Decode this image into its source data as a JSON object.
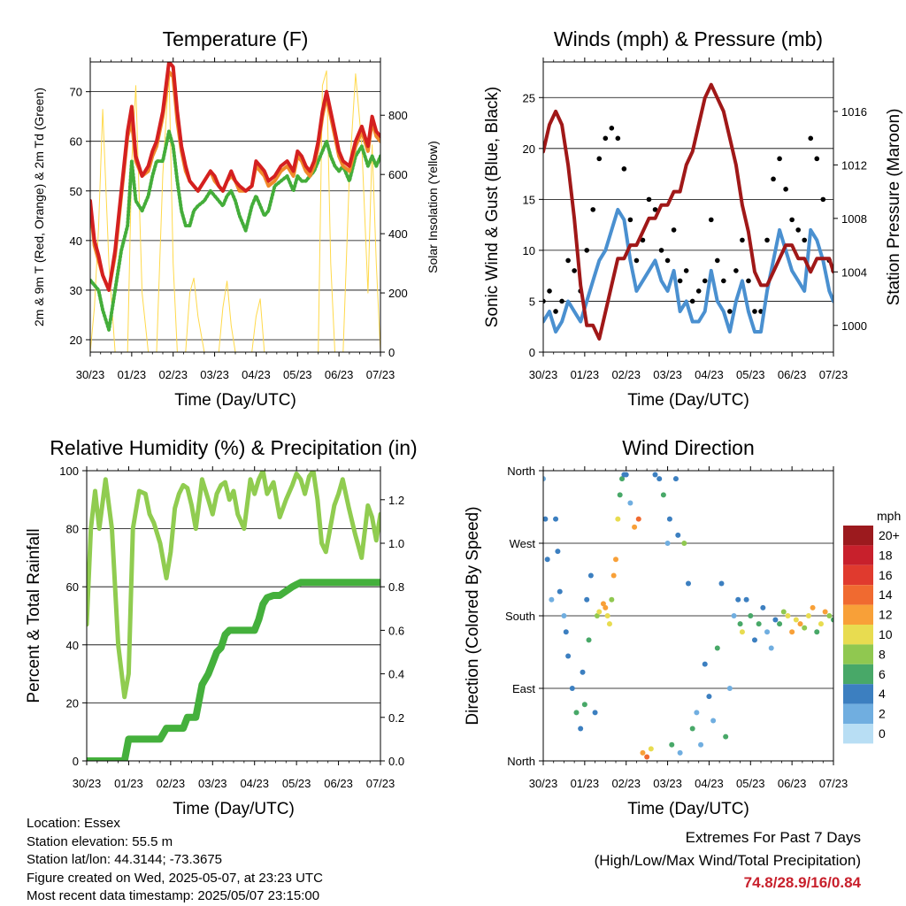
{
  "colors": {
    "temp2m": "#d42020",
    "temp9m": "#f08a2a",
    "dewpoint": "#44ad3a",
    "solar": "#ffd94a",
    "wind": "#4a90d0",
    "gust": "#000000",
    "pressure": "#a01818",
    "rh": "#90cc50",
    "rain": "#44b03c",
    "extreme_text": "#c8202c"
  },
  "x_tick_labels": [
    "30/23",
    "01/23",
    "02/23",
    "03/23",
    "04/23",
    "05/23",
    "06/23",
    "07/23"
  ],
  "x_axis_label": "Time (Day/UTC)",
  "chart_data": [
    {
      "type": "line",
      "title": "Temperature (F)",
      "xlabel": "Time (Day/UTC)",
      "ylabel": "2m & 9m T (Red, Orange) & 2m Td (Green)",
      "y2label": "Solar Insolation (Yellow)",
      "ylim": [
        17.5,
        76
      ],
      "yticks": [
        20,
        30,
        40,
        50,
        60,
        70
      ],
      "y2lim": [
        0,
        980
      ],
      "y2ticks": [
        0,
        200,
        400,
        600,
        800
      ],
      "x": [
        30.0,
        30.1,
        30.2,
        30.3,
        30.45,
        30.6,
        30.75,
        30.9,
        31.0,
        31.1,
        31.25,
        31.4,
        31.5,
        31.6,
        31.75,
        31.9,
        32.0,
        32.1,
        32.2,
        32.3,
        32.4,
        32.5,
        32.6,
        32.75,
        32.9,
        33.0,
        33.1,
        33.2,
        33.3,
        33.4,
        33.5,
        33.6,
        33.75,
        33.9,
        34.0,
        34.1,
        34.2,
        34.3,
        34.45,
        34.6,
        34.75,
        34.9,
        35.0,
        35.1,
        35.2,
        35.3,
        35.4,
        35.5,
        35.6,
        35.7,
        35.8,
        35.9,
        36.0,
        36.1,
        36.25,
        36.4,
        36.55,
        36.7,
        36.8,
        36.9,
        37.0
      ],
      "series": [
        {
          "name": "2m T",
          "values": [
            48,
            40,
            37,
            33,
            30,
            38,
            50,
            62,
            67,
            57,
            53,
            55,
            58,
            60,
            66,
            76,
            75,
            66,
            59,
            55,
            52,
            51,
            50,
            52,
            54,
            53,
            51,
            50,
            52,
            54,
            52,
            51,
            50,
            51,
            56,
            55,
            54,
            52,
            53,
            55,
            56,
            54,
            58,
            57,
            55,
            54,
            56,
            60,
            66,
            70,
            66,
            62,
            58,
            56,
            55,
            60,
            63,
            59,
            65,
            62,
            61
          ]
        },
        {
          "name": "9m T",
          "values": [
            47,
            39,
            36,
            33,
            30,
            37,
            49,
            61,
            64,
            56,
            53,
            54,
            57,
            59,
            65,
            74,
            73,
            64,
            58,
            54,
            52,
            51,
            50,
            52,
            54,
            52,
            51,
            50,
            52,
            53,
            52,
            50,
            50,
            51,
            55,
            54,
            53,
            51,
            52,
            54,
            55,
            53,
            57,
            56,
            54,
            53,
            55,
            59,
            65,
            69,
            65,
            61,
            57,
            55,
            54,
            59,
            62,
            58,
            64,
            61,
            60
          ]
        },
        {
          "name": "2m Td",
          "values": [
            32,
            31,
            30,
            26,
            22,
            30,
            38,
            43,
            56,
            48,
            46,
            49,
            53,
            56,
            56,
            62,
            59,
            52,
            46,
            43,
            43,
            46,
            47,
            48,
            50,
            49,
            48,
            47,
            49,
            50,
            48,
            45,
            42,
            47,
            49,
            47,
            45,
            46,
            51,
            52,
            53,
            50,
            53,
            52,
            52,
            53,
            54,
            56,
            58,
            60,
            57,
            55,
            54,
            55,
            52,
            57,
            59,
            55,
            57,
            55,
            57
          ]
        },
        {
          "name": "Solar",
          "values": [
            0,
            150,
            420,
            820,
            300,
            0,
            0,
            0,
            640,
            900,
            200,
            0,
            0,
            0,
            600,
            950,
            300,
            0,
            0,
            0,
            200,
            250,
            120,
            0,
            0,
            0,
            0,
            150,
            240,
            90,
            0,
            0,
            0,
            0,
            120,
            180,
            0,
            0,
            0,
            0,
            0,
            0,
            0,
            0,
            0,
            0,
            0,
            0,
            900,
            950,
            300,
            0,
            0,
            0,
            600,
            940,
            700,
            200,
            700,
            300,
            0
          ]
        }
      ]
    },
    {
      "type": "line",
      "title": "Winds (mph) & Pressure (mb)",
      "xlabel": "Time (Day/UTC)",
      "ylabel": "Sonic Wind & Gust (Blue, Black)",
      "y2label": "Station Pressure (Maroon)",
      "ylim": [
        0,
        28.5
      ],
      "yticks": [
        0,
        5,
        10,
        15,
        20,
        25
      ],
      "y2lim": [
        998.0,
        1019.7
      ],
      "y2ticks": [
        1000,
        1004,
        1008,
        1012,
        1016
      ],
      "x": [
        30.0,
        30.15,
        30.3,
        30.45,
        30.6,
        30.75,
        30.9,
        31.05,
        31.2,
        31.35,
        31.5,
        31.65,
        31.8,
        31.95,
        32.1,
        32.25,
        32.4,
        32.55,
        32.7,
        32.85,
        33.0,
        33.15,
        33.3,
        33.45,
        33.6,
        33.75,
        33.9,
        34.05,
        34.2,
        34.35,
        34.5,
        34.65,
        34.8,
        34.95,
        35.1,
        35.25,
        35.4,
        35.55,
        35.7,
        35.85,
        36.0,
        36.15,
        36.3,
        36.45,
        36.6,
        36.75,
        36.9,
        37.0
      ],
      "series": [
        {
          "name": "Sonic Wind",
          "values": [
            3,
            4,
            2,
            3,
            5,
            4,
            3,
            5,
            7,
            9,
            10,
            12,
            14,
            13,
            9,
            6,
            7,
            8,
            9,
            7,
            6,
            8,
            4,
            5,
            3,
            3,
            4,
            8,
            5,
            4,
            2,
            5,
            7,
            4,
            2,
            2,
            6,
            9,
            12,
            10,
            8,
            7,
            6,
            12,
            11,
            9,
            6,
            5
          ]
        },
        {
          "name": "Gust",
          "values": [
            5,
            6,
            4,
            5,
            9,
            8,
            6,
            10,
            14,
            19,
            21,
            22,
            21,
            18,
            13,
            9,
            11,
            15,
            14,
            10,
            9,
            12,
            7,
            8,
            5,
            6,
            7,
            13,
            9,
            7,
            4,
            8,
            11,
            7,
            4,
            4,
            11,
            17,
            19,
            16,
            13,
            12,
            11,
            21,
            19,
            15,
            9,
            8
          ]
        },
        {
          "name": "Station Pressure",
          "values": [
            1013,
            1015,
            1016,
            1015,
            1012,
            1008,
            1003,
            1000,
            1000,
            999,
            1001,
            1003,
            1005,
            1005,
            1006,
            1006,
            1007,
            1008,
            1008,
            1009,
            1009,
            1010,
            1010,
            1012,
            1013,
            1015,
            1017,
            1018,
            1017,
            1016,
            1014,
            1012,
            1009,
            1007,
            1004,
            1003,
            1003,
            1004,
            1005,
            1006,
            1006,
            1005,
            1005,
            1004,
            1005,
            1005,
            1005,
            1004
          ]
        }
      ]
    },
    {
      "type": "line",
      "title": "Relative Humidity (%) & Precipitation (in)",
      "xlabel": "Time (Day/UTC)",
      "ylabel": "Percent & Total Rainfall",
      "ylim": [
        0,
        100
      ],
      "yticks": [
        0,
        20,
        40,
        60,
        80,
        100
      ],
      "y2lim": [
        0,
        1.3333
      ],
      "y2ticks": [
        0.0,
        0.2,
        0.4,
        0.6,
        0.8,
        1.0,
        1.2
      ],
      "x": [
        30.0,
        30.1,
        30.2,
        30.3,
        30.45,
        30.6,
        30.75,
        30.9,
        31.0,
        31.1,
        31.25,
        31.4,
        31.5,
        31.6,
        31.75,
        31.9,
        32.0,
        32.1,
        32.2,
        32.3,
        32.4,
        32.5,
        32.6,
        32.75,
        32.9,
        33.0,
        33.1,
        33.2,
        33.3,
        33.4,
        33.5,
        33.6,
        33.75,
        33.9,
        34.0,
        34.1,
        34.2,
        34.3,
        34.45,
        34.6,
        34.75,
        34.9,
        35.0,
        35.1,
        35.2,
        35.3,
        35.4,
        35.5,
        35.6,
        35.7,
        35.8,
        35.9,
        36.0,
        36.1,
        36.25,
        36.4,
        36.55,
        36.7,
        36.8,
        36.9,
        37.0
      ],
      "series": [
        {
          "name": "Relative Humidity",
          "values": [
            47,
            80,
            93,
            80,
            97,
            80,
            40,
            22,
            30,
            80,
            93,
            92,
            85,
            82,
            75,
            63,
            72,
            87,
            92,
            95,
            94,
            88,
            80,
            97,
            90,
            85,
            92,
            95,
            96,
            90,
            93,
            85,
            80,
            97,
            92,
            97,
            100,
            92,
            96,
            84,
            90,
            95,
            99,
            97,
            92,
            98,
            100,
            90,
            75,
            72,
            80,
            88,
            92,
            97,
            87,
            78,
            70,
            88,
            84,
            76,
            85
          ]
        },
        {
          "name": "Total Rainfall",
          "values": [
            0,
            0,
            0,
            0,
            0,
            0,
            0,
            0,
            0.1,
            0.1,
            0.1,
            0.1,
            0.1,
            0.1,
            0.1,
            0.15,
            0.15,
            0.15,
            0.15,
            0.15,
            0.2,
            0.2,
            0.2,
            0.35,
            0.4,
            0.45,
            0.5,
            0.52,
            0.58,
            0.6,
            0.6,
            0.6,
            0.6,
            0.6,
            0.6,
            0.65,
            0.72,
            0.75,
            0.76,
            0.76,
            0.78,
            0.8,
            0.81,
            0.82,
            0.82,
            0.82,
            0.82,
            0.82,
            0.82,
            0.82,
            0.82,
            0.82,
            0.82,
            0.82,
            0.82,
            0.82,
            0.82,
            0.82,
            0.82,
            0.82,
            0.82
          ]
        }
      ]
    },
    {
      "type": "scatter",
      "title": "Wind Direction",
      "xlabel": "Time (Day/UTC)",
      "ylabel": "Direction (Colored By Speed)",
      "ytick_labels": [
        "North",
        "East",
        "South",
        "West",
        "North"
      ],
      "ylim": [
        0,
        360
      ],
      "colorbar": {
        "title": "mph",
        "labels": [
          "20+",
          "18",
          "16",
          "14",
          "12",
          "10",
          "8",
          "6",
          "4",
          "2",
          "0"
        ],
        "colors": [
          "#9c1a1e",
          "#c8202c",
          "#e03a2e",
          "#f06a30",
          "#f8a038",
          "#e8dc50",
          "#90c850",
          "#48a868",
          "#3c7fc0",
          "#70aee0",
          "#b8def4"
        ]
      },
      "x": [
        30.0,
        30.05,
        30.1,
        30.2,
        30.3,
        30.35,
        30.4,
        30.5,
        30.55,
        30.6,
        30.7,
        30.8,
        30.9,
        30.95,
        31.0,
        31.05,
        31.1,
        31.15,
        31.25,
        31.3,
        31.35,
        31.45,
        31.5,
        31.55,
        31.6,
        31.65,
        31.7,
        31.75,
        31.8,
        31.85,
        31.9,
        31.95,
        32.0,
        32.1,
        32.2,
        32.3,
        32.4,
        32.5,
        32.6,
        32.7,
        32.8,
        32.9,
        33.0,
        33.05,
        33.1,
        33.2,
        33.25,
        33.3,
        33.4,
        33.5,
        33.6,
        33.7,
        33.8,
        33.9,
        34.0,
        34.1,
        34.2,
        34.3,
        34.4,
        34.5,
        34.6,
        34.7,
        34.75,
        34.8,
        34.9,
        35.0,
        35.1,
        35.2,
        35.3,
        35.4,
        35.5,
        35.6,
        35.7,
        35.8,
        35.9,
        36.0,
        36.1,
        36.2,
        36.3,
        36.4,
        36.5,
        36.6,
        36.7,
        36.8,
        36.9,
        37.0
      ],
      "speed": [
        2,
        3,
        4,
        2,
        3,
        4,
        3,
        2,
        4,
        3,
        4,
        5,
        3,
        4,
        5,
        4,
        6,
        3,
        4,
        8,
        10,
        11,
        12,
        10,
        9,
        8,
        12,
        11,
        10,
        6,
        5,
        4,
        3,
        2,
        12,
        14,
        11,
        13,
        9,
        4,
        3,
        5,
        2,
        4,
        6,
        3,
        4,
        2,
        8,
        3,
        5,
        2,
        1,
        3,
        4,
        2,
        6,
        3,
        5,
        1,
        2,
        4,
        6,
        9,
        3,
        5,
        4,
        6,
        3,
        2,
        1,
        4,
        5,
        8,
        10,
        12,
        9,
        11,
        8,
        10,
        12,
        6,
        9,
        11,
        8,
        5
      ],
      "direction": [
        350,
        300,
        250,
        200,
        300,
        260,
        210,
        180,
        160,
        130,
        90,
        60,
        40,
        110,
        70,
        200,
        150,
        230,
        60,
        180,
        185,
        195,
        190,
        180,
        170,
        200,
        230,
        250,
        300,
        330,
        350,
        355,
        355,
        320,
        290,
        300,
        10,
        5,
        15,
        355,
        350,
        330,
        270,
        300,
        20,
        350,
        280,
        10,
        270,
        220,
        40,
        60,
        20,
        120,
        80,
        50,
        140,
        220,
        30,
        90,
        180,
        200,
        170,
        160,
        200,
        180,
        150,
        170,
        190,
        160,
        140,
        175,
        170,
        185,
        180,
        160,
        175,
        170,
        165,
        180,
        190,
        160,
        170,
        185,
        180,
        175
      ]
    }
  ],
  "info": {
    "location": "Location: Essex",
    "elevation": "Station elevation: 55.5 m",
    "latlon": "Station lat/lon: 44.3144; -73.3675",
    "created": "Figure created on Wed, 2025-05-07, at 23:23 UTC",
    "recent": "Most recent data timestamp: 2025/05/07 23:15:00"
  },
  "extremes": {
    "line1": "Extremes For Past 7 Days",
    "line2": "(High/Low/Max Wind/Total Precipitation)",
    "value": "74.8/28.9/16/0.84"
  }
}
